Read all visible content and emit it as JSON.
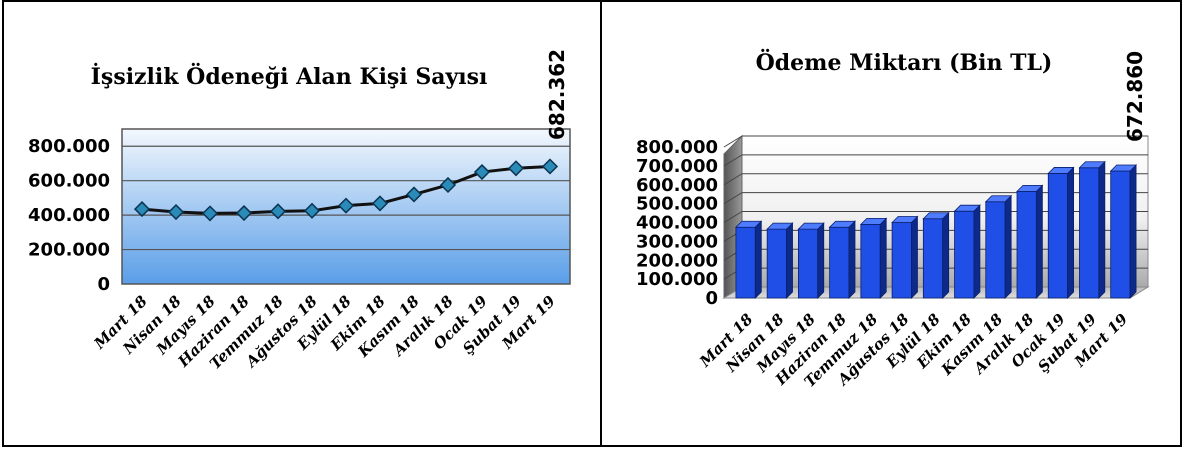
{
  "chart_data": [
    {
      "type": "line",
      "title": "İşsizlik Ödeneği Alan Kişi Sayısı",
      "categories": [
        "Mart 18",
        "Nisan 18",
        "Mayıs 18",
        "Haziran 18",
        "Temmuz 18",
        "Ağustos 18",
        "Eylül 18",
        "Ekim 18",
        "Kasım 18",
        "Aralık 18",
        "Ocak 19",
        "Şubat 19",
        "Mart 19"
      ],
      "values": [
        435000,
        418000,
        410000,
        412000,
        422000,
        425000,
        455000,
        468000,
        520000,
        575000,
        650000,
        672000,
        682362
      ],
      "ylim": [
        0,
        900000
      ],
      "yticks": [
        0,
        200000,
        400000,
        600000,
        800000
      ],
      "ytick_labels": [
        "0",
        "200.000",
        "400.000",
        "600.000",
        "800.000"
      ],
      "data_label": "682.362",
      "grid": true,
      "colors": {
        "line": "#111111",
        "marker": "#2a8ab8",
        "plot_top": "#f3f8fd",
        "plot_bottom": "#5a9ee8"
      }
    },
    {
      "type": "bar",
      "title": "Ödeme Miktarı (Bin TL)",
      "categories": [
        "Mart 18",
        "Nisan 18",
        "Mayıs 18",
        "Haziran 18",
        "Temmuz 18",
        "Ağustos 18",
        "Eylül 18",
        "Ekim 18",
        "Kasım 18",
        "Aralık 18",
        "Ocak 19",
        "Şubat 19",
        "Mart 19"
      ],
      "values": [
        375000,
        365000,
        365000,
        375000,
        390000,
        400000,
        420000,
        460000,
        510000,
        565000,
        660000,
        690000,
        672860
      ],
      "ylim": [
        0,
        800000
      ],
      "yticks": [
        0,
        100000,
        200000,
        300000,
        400000,
        500000,
        600000,
        700000,
        800000
      ],
      "ytick_labels": [
        "0",
        "100.000",
        "200.000",
        "300.000",
        "400.000",
        "500.000",
        "600.000",
        "700.000",
        "800.000"
      ],
      "data_label": "672.860",
      "grid": true,
      "colors": {
        "bar_front": "#1f4fe6",
        "bar_side": "#0d2a8a",
        "bar_top": "#4f7bff"
      }
    }
  ]
}
